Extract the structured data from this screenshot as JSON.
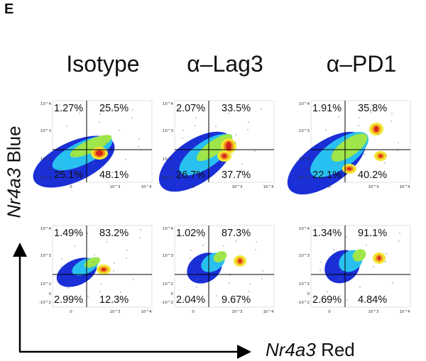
{
  "panel_letter": "E",
  "axes": {
    "y_label_prefix": "Nr4a3",
    "y_label_suffix": "Blue",
    "x_label_prefix": "Nr4a3",
    "x_label_suffix": "Red"
  },
  "colors": {
    "axis_arrow": "#000000",
    "gate_line": "#000000"
  },
  "chart_data": {
    "type": "scatter",
    "subtype": "flow-cytometry density plots with quadrant gates",
    "columns": [
      "Isotype",
      "α–Lag3",
      "α–PD1"
    ],
    "xlabel": "Nr4a3 Red",
    "ylabel": "Nr4a3 Blue",
    "x_ticks": [
      "0",
      "10^3",
      "10^4"
    ],
    "y_ticks": [
      "-10^2",
      "0",
      "10^2",
      "10^3",
      "10^4"
    ],
    "scale": "biexponential",
    "plots": [
      {
        "row": 1,
        "column": "Isotype",
        "quadrants": {
          "upper_left": "1.27%",
          "upper_right": "25.5%",
          "lower_left": "25.1%",
          "lower_right": "48.1%"
        }
      },
      {
        "row": 1,
        "column": "α–Lag3",
        "quadrants": {
          "upper_left": "2.07%",
          "upper_right": "33.5%",
          "lower_left": "26.7%",
          "lower_right": "37.7%"
        }
      },
      {
        "row": 1,
        "column": "α–PD1",
        "quadrants": {
          "upper_left": "1.91%",
          "upper_right": "35.8%",
          "lower_left": "22.1%",
          "lower_right": "40.2%"
        }
      },
      {
        "row": 2,
        "column": "Isotype",
        "quadrants": {
          "upper_left": "1.49%",
          "upper_right": "83.2%",
          "lower_left": "2.99%",
          "lower_right": "12.3%"
        }
      },
      {
        "row": 2,
        "column": "α–Lag3",
        "quadrants": {
          "upper_left": "1.02%",
          "upper_right": "87.3%",
          "lower_left": "2.04%",
          "lower_right": "9.67%"
        }
      },
      {
        "row": 2,
        "column": "α–PD1",
        "quadrants": {
          "upper_left": "1.34%",
          "upper_right": "91.1%",
          "lower_left": "2.69%",
          "lower_right": "4.84%"
        }
      }
    ]
  }
}
